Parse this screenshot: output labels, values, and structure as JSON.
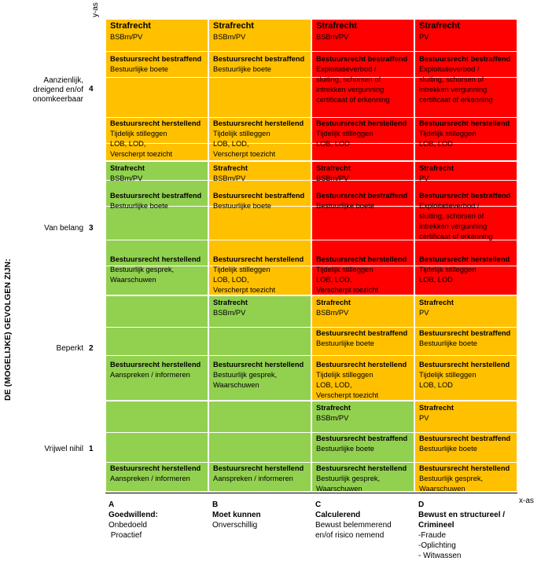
{
  "axes": {
    "y_label": "y-as",
    "x_label": "x-as",
    "vertical_title": "DE (MOGELIJKE) GEVOLGEN ZIJN:"
  },
  "rows": [
    {
      "label_lines": [
        "Aanzienlijk,",
        "dreigend en/of",
        "onomkeerbaar"
      ],
      "num": "4"
    },
    {
      "label_lines": [
        "Van belang"
      ],
      "num": "3"
    },
    {
      "label_lines": [
        "Beperkt"
      ],
      "num": "2"
    },
    {
      "label_lines": [
        "Vrijwel nihil"
      ],
      "num": "1"
    }
  ],
  "columns": [
    {
      "letter": "A",
      "title": "Goedwillend:",
      "lines": [
        "Onbedoeld",
        " Proactief"
      ]
    },
    {
      "letter": "B",
      "title": "Moet kunnen",
      "lines": [
        "Onverschillig"
      ]
    },
    {
      "letter": "C",
      "title": "Calculerend",
      "lines": [
        "Bewust belemmerend",
        "en/of risico nemend"
      ]
    },
    {
      "letter": "D",
      "title": "Bewust en structureel / Crimineel",
      "lines": [
        "-Fraude",
        "-Oplichting",
        "- Witwassen"
      ]
    }
  ],
  "colors": {
    "orange": "#ffc000",
    "red": "#ff0000",
    "green": "#92d050"
  },
  "cells": {
    "r4": [
      {
        "color": "orange",
        "straf": "Strafrecht",
        "straf_val": "BSBm/PV",
        "bestr_h": "Bestuursrecht bestraffend",
        "bestr": [
          "Bestuurlijke boete"
        ],
        "herst_h": "Bestuursrecht herstellend",
        "herst": [
          "Tijdelijk stilleggen",
          "LOB, LOD,",
          "Verscherpt toezicht"
        ]
      },
      {
        "color": "orange",
        "straf": "Strafrecht",
        "straf_val": "BSBm/PV",
        "bestr_h": "Bestuursrecht bestraffend",
        "bestr": [
          "Bestuurlijke boete"
        ],
        "herst_h": "Bestuursrecht herstellend",
        "herst": [
          "Tijdelijk stilleggen",
          "LOB, LOD,",
          "Verscherpt toezicht"
        ]
      },
      {
        "color": "red",
        "straf": "Strafrecht",
        "straf_val": "BSBm/PV",
        "bestr_h": "Bestuursrecht bestraffend",
        "bestr": [
          "Exploitatieverbod /",
          "sluiting, schorsen of",
          "intrekken vergunning",
          "certificaat of erkenning"
        ],
        "herst_h": "Bestuursrecht herstellend",
        "herst": [
          "Tijdelijk stilleggen",
          "LOB, LOD"
        ]
      },
      {
        "color": "red",
        "straf": "Strafrecht",
        "straf_val": "PV",
        "bestr_h": "Bestuursrecht bestraffend",
        "bestr": [
          "Exploitatieverbod /",
          "sluiting, schorsen of",
          "intrekken vergunning",
          "certificaat of erkenning"
        ],
        "herst_h": "Bestuursrecht herstellend",
        "herst": [
          "Tijdelijk stilleggen",
          "LOB, LOD"
        ]
      }
    ],
    "r3": [
      {
        "color": "green",
        "straf": "Strafrecht",
        "straf_val": "BSBm/PV",
        "bestr_h": "Bestuursrecht bestraffend",
        "bestr": [
          "Bestuurlijke boete"
        ],
        "herst_h": "Bestuursrecht herstellend",
        "herst": [
          "Bestuurlijk gesprek,",
          "Waarschuwen"
        ]
      },
      {
        "color": "orange",
        "straf": "Strafrecht",
        "straf_val": "BSBm/PV",
        "bestr_h": "Bestuursrecht bestraffend",
        "bestr": [
          "Bestuurlijke boete"
        ],
        "herst_h": "Bestuursrecht herstellend",
        "herst": [
          "Tijdelijk stilleggen",
          "LOB, LOD,",
          "Verscherpt toezicht"
        ]
      },
      {
        "color": "red",
        "straf": "Strafrecht",
        "straf_val": "BSBm/PV",
        "bestr_h": "Bestuursrecht bestraffend",
        "bestr": [
          "Bestuurlijke boete"
        ],
        "herst_h": "Bestuursrecht herstellend",
        "herst": [
          "Tijdelijk stilleggen",
          "LOB, LOD,",
          "Verscherpt toezicht"
        ]
      },
      {
        "color": "red",
        "straf": "Strafrecht",
        "straf_val": "PV",
        "bestr_h": "Bestuursrecht bestraffend",
        "bestr": [
          "Exploitatieverbod /",
          "sluiting, schorsen of",
          "intrekken vergunning",
          "certificaat of erkenning"
        ],
        "herst_h": "Bestuursrecht herstellend",
        "herst": [
          "Tijdelijk stilleggen",
          "LOB, LOD"
        ]
      }
    ],
    "r2": [
      {
        "color": "green",
        "herst_h": "Bestuursrecht herstellend",
        "herst": [
          "Aanspreken / informeren"
        ]
      },
      {
        "color": "green",
        "straf": "Strafrecht",
        "straf_val": "BSBm/PV",
        "herst_h": "Bestuursrecht herstellend",
        "herst": [
          "Bestuurlijk gesprek,",
          "Waarschuwen"
        ]
      },
      {
        "color": "orange",
        "straf": "Strafrecht",
        "straf_val": "BSBm/PV",
        "bestr_h": "Bestuursrecht bestraffend",
        "bestr": [
          "Bestuurlijke boete"
        ],
        "herst_h": "Bestuursrecht herstellend",
        "herst": [
          "Tijdelijk stilleggen",
          "LOB, LOD,",
          "Verscherpt toezicht"
        ]
      },
      {
        "color": "orange",
        "straf": "Strafrecht",
        "straf_val": "PV",
        "bestr_h": "Bestuursrecht bestraffend",
        "bestr": [
          "Bestuurlijke boete"
        ],
        "herst_h": "Bestuursrecht herstellend",
        "herst": [
          "Tijdelijk stilleggen",
          "LOB, LOD"
        ]
      }
    ],
    "r1": [
      {
        "color": "green",
        "herst_h": "Bestuursrecht herstellend",
        "herst": [
          "Aanspreken / informeren"
        ]
      },
      {
        "color": "green",
        "herst_h": "Bestuursrecht herstellend",
        "herst": [
          "Aanspreken / informeren"
        ]
      },
      {
        "color": "green",
        "straf": "Strafrecht",
        "straf_val": "BSBm/PV",
        "bestr_h": "Bestuursrecht bestraffend",
        "bestr": [
          "Bestuurlijke boete"
        ],
        "herst_h": "Bestuursrecht herstellend",
        "herst": [
          "Bestuurlijk gesprek,",
          "Waarschuwen"
        ]
      },
      {
        "color": "orange",
        "straf": "Strafrecht",
        "straf_val": "PV",
        "bestr_h": "Bestuursrecht bestraffend",
        "bestr": [
          "Bestuurlijke boete"
        ],
        "herst_h": "Bestuursrecht herstellend",
        "herst": [
          "Bestuurlijk gesprek,",
          "Waarschuwen"
        ]
      }
    ]
  }
}
